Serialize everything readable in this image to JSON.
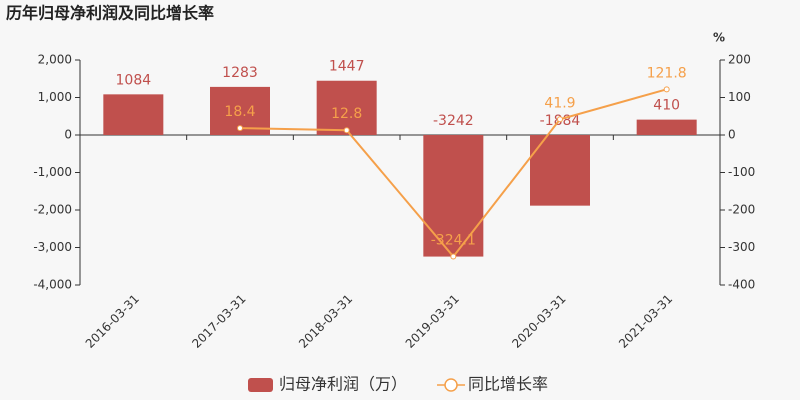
{
  "chart_data": {
    "type": "bar",
    "title": "历年归母净利润及同比增长率",
    "categories": [
      "2016-03-31",
      "2017-03-31",
      "2018-03-31",
      "2019-03-31",
      "2020-03-31",
      "2021-03-31"
    ],
    "series": [
      {
        "name": "归母净利润（万）",
        "type": "bar",
        "color": "#c0504d",
        "values": [
          1084,
          1283,
          1447,
          -3242,
          -1884,
          410
        ]
      },
      {
        "name": "同比增长率",
        "type": "line",
        "axis": "y2",
        "color": "#f5a04a",
        "values": [
          null,
          18.4,
          12.8,
          -324.1,
          41.9,
          121.8
        ]
      }
    ],
    "ylim": [
      -4000,
      2000
    ],
    "yticks": [
      {
        "value": 2000,
        "label": "2,000"
      },
      {
        "value": 1000,
        "label": "1,000"
      },
      0,
      {
        "value": -1000,
        "label": "-1,000"
      },
      {
        "value": -2000,
        "label": "-2,000"
      },
      {
        "value": -3000,
        "label": "-3,000"
      },
      {
        "value": -4000,
        "label": "-4,000"
      }
    ],
    "y2lim": [
      -400,
      200
    ],
    "y2ticks": [
      200,
      100,
      0,
      -100,
      -200,
      -300,
      -400
    ],
    "y2_label": "%",
    "grid": false,
    "legend": "bottom"
  }
}
